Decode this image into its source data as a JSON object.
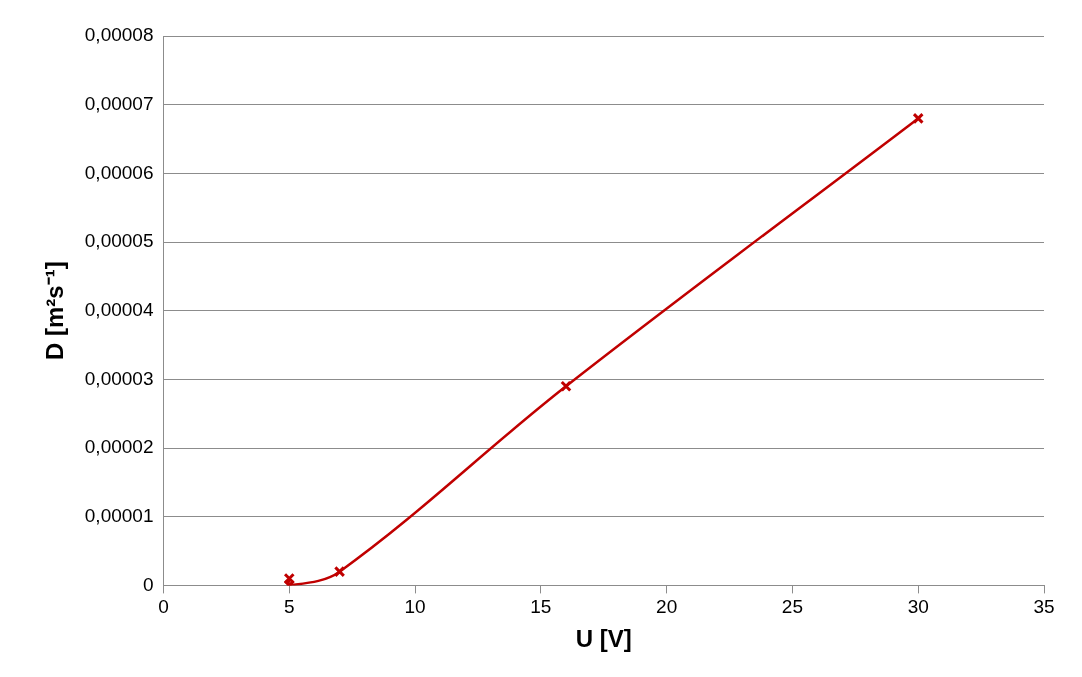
{
  "chart_data": {
    "type": "line",
    "xlabel": "U [V]",
    "ylabel": "D [m²s⁻¹]",
    "x": [
      5,
      5,
      7,
      16,
      30
    ],
    "series": [
      {
        "color": "#c00000",
        "values": [
          1e-06,
          0,
          2e-06,
          2.9e-05,
          6.8e-05
        ]
      }
    ],
    "xlim": [
      0,
      35
    ],
    "xticks": [
      0,
      5,
      10,
      15,
      20,
      25,
      30,
      35
    ],
    "ylim": [
      0,
      8e-05
    ],
    "yticks": [
      0,
      {
        "value": 1e-05,
        "label": "0,00001"
      },
      {
        "value": 2e-05,
        "label": "0,00002"
      },
      {
        "value": 3e-05,
        "label": "0,00003"
      },
      {
        "value": 4e-05,
        "label": "0,00004"
      },
      {
        "value": 5e-05,
        "label": "0,00005"
      },
      {
        "value": 6e-05,
        "label": "0,00006"
      },
      {
        "value": 7e-05,
        "label": "0,00007"
      },
      {
        "value": 8e-05,
        "label": "0,00008"
      }
    ],
    "grid": "y",
    "legend": false,
    "marker": "cross",
    "line_style": "solid"
  }
}
